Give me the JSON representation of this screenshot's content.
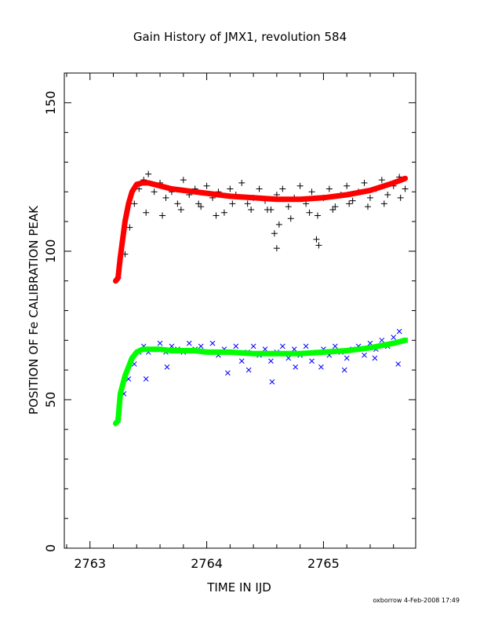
{
  "chart_data": {
    "type": "scatter",
    "title": "Gain History of JMX1, revolution 584",
    "xlabel": "TIME IN IJD",
    "ylabel": "POSITION OF Fe CALIBRATION PEAK",
    "xlim": [
      2762.78,
      2765.79
    ],
    "ylim": [
      0,
      160
    ],
    "xticks": [
      2763,
      2764,
      2765
    ],
    "yticks": [
      0,
      50,
      100,
      150
    ],
    "grid": false,
    "legend": "none",
    "series": [
      {
        "marker": "plus",
        "color": "#000000",
        "x": [
          2763.24,
          2763.3,
          2763.34,
          2763.38,
          2763.42,
          2763.46,
          2763.5,
          2763.55,
          2763.6,
          2763.65,
          2763.7,
          2763.75,
          2763.8,
          2763.85,
          2763.9,
          2763.95,
          2764.0,
          2764.05,
          2764.1,
          2764.15,
          2764.2,
          2764.25,
          2764.3,
          2764.35,
          2764.4,
          2764.45,
          2764.5,
          2764.55,
          2764.6,
          2764.65,
          2764.7,
          2764.75,
          2764.8,
          2764.85,
          2764.9,
          2764.95,
          2765.0,
          2765.05,
          2765.1,
          2765.15,
          2765.2,
          2765.25,
          2765.3,
          2765.35,
          2765.4,
          2765.45,
          2765.5,
          2765.55,
          2765.6,
          2765.65,
          2765.7,
          2763.48,
          2763.62,
          2763.78,
          2763.93,
          2764.08,
          2764.22,
          2764.38,
          2764.52,
          2764.58,
          2764.6,
          2764.62,
          2764.72,
          2764.88,
          2764.94,
          2764.96,
          2765.08,
          2765.22,
          2765.38,
          2765.52,
          2765.66
        ],
        "y": [
          91,
          99,
          108,
          116,
          121,
          124,
          126,
          120,
          123,
          118,
          120,
          116,
          124,
          119,
          121,
          115,
          122,
          118,
          120,
          113,
          121,
          119,
          123,
          116,
          118,
          121,
          117,
          114,
          119,
          121,
          115,
          118,
          122,
          116,
          120,
          112,
          118,
          121,
          115,
          119,
          122,
          117,
          120,
          123,
          118,
          121,
          124,
          119,
          122,
          125,
          121,
          113,
          112,
          114,
          116,
          112,
          116,
          114,
          114,
          106,
          101,
          109,
          111,
          113,
          104,
          102,
          114,
          116,
          115,
          116,
          118
        ]
      },
      {
        "marker": "x",
        "color": "#0000ff",
        "x": [
          2763.24,
          2763.29,
          2763.33,
          2763.38,
          2763.42,
          2763.46,
          2763.5,
          2763.55,
          2763.6,
          2763.65,
          2763.7,
          2763.75,
          2763.8,
          2763.85,
          2763.9,
          2763.95,
          2764.0,
          2764.05,
          2764.1,
          2764.15,
          2764.2,
          2764.25,
          2764.3,
          2764.35,
          2764.4,
          2764.45,
          2764.5,
          2764.55,
          2764.6,
          2764.65,
          2764.7,
          2764.75,
          2764.8,
          2764.85,
          2764.9,
          2764.95,
          2765.0,
          2765.05,
          2765.1,
          2765.15,
          2765.2,
          2765.25,
          2765.3,
          2765.35,
          2765.4,
          2765.45,
          2765.5,
          2765.55,
          2765.6,
          2765.65,
          2765.7,
          2763.48,
          2763.66,
          2764.18,
          2764.36,
          2764.56,
          2764.76,
          2764.98,
          2765.18,
          2765.44,
          2765.64
        ],
        "y": [
          43,
          52,
          57,
          62,
          66,
          68,
          66,
          67,
          69,
          66,
          68,
          67,
          66,
          69,
          67,
          68,
          66,
          69,
          65,
          67,
          66,
          68,
          63,
          66,
          68,
          65,
          67,
          63,
          66,
          68,
          64,
          67,
          65,
          68,
          63,
          66,
          67,
          65,
          68,
          66,
          64,
          67,
          68,
          65,
          69,
          67,
          70,
          68,
          71,
          73,
          70,
          57,
          61,
          59,
          60,
          56,
          61,
          61,
          60,
          64,
          62
        ]
      },
      {
        "marker": "line",
        "color": "#ff0000",
        "x": [
          2763.22,
          2763.24,
          2763.26,
          2763.28,
          2763.3,
          2763.33,
          2763.36,
          2763.4,
          2763.45,
          2763.5,
          2763.6,
          2763.7,
          2763.8,
          2763.9,
          2764.0,
          2764.2,
          2764.4,
          2764.6,
          2764.8,
          2765.0,
          2765.2,
          2765.4,
          2765.6,
          2765.7
        ],
        "y": [
          90,
          91,
          98,
          104,
          110,
          116,
          120,
          122.5,
          123,
          123,
          122,
          121,
          120.5,
          120,
          119.5,
          118.5,
          118,
          117.5,
          117.5,
          118,
          119,
          120.5,
          123,
          124.5
        ]
      },
      {
        "marker": "line",
        "color": "#00ff00",
        "x": [
          2763.22,
          2763.24,
          2763.26,
          2763.28,
          2763.3,
          2763.33,
          2763.36,
          2763.4,
          2763.45,
          2763.5,
          2763.6,
          2763.7,
          2763.8,
          2763.9,
          2764.0,
          2764.2,
          2764.4,
          2764.6,
          2764.8,
          2765.0,
          2765.2,
          2765.4,
          2765.6,
          2765.7
        ],
        "y": [
          42,
          43,
          52,
          55,
          58,
          61,
          64,
          66,
          67,
          67,
          67,
          66.5,
          66.5,
          66.5,
          66,
          66,
          65.5,
          65.5,
          65.5,
          66,
          66.5,
          67.5,
          69,
          70
        ]
      }
    ]
  },
  "footer": {
    "credit": "oxborrow  4-Feb-2008 17:49"
  }
}
